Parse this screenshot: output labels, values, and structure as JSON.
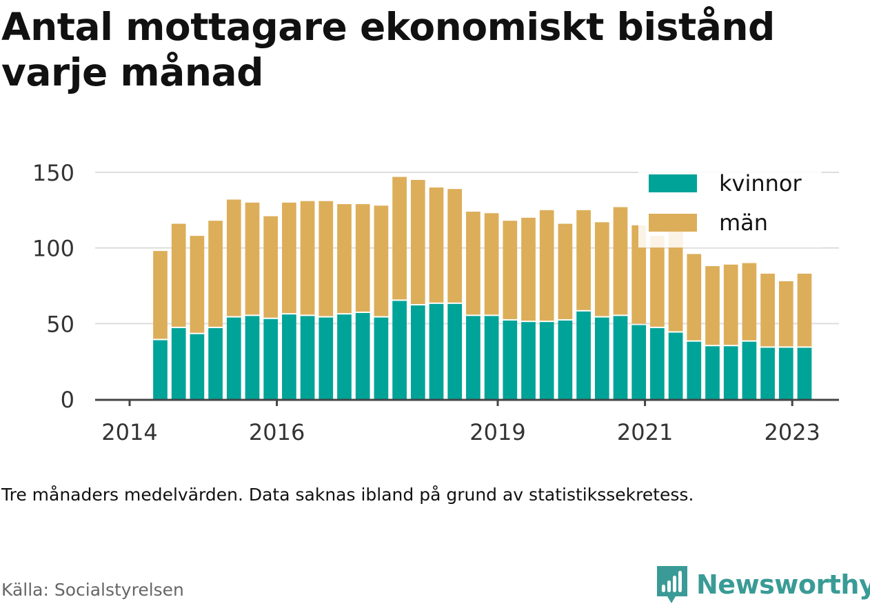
{
  "title": "Antal mottagare ekonomiskt bistånd varje månad",
  "note": "Tre månaders medelvärden. Data saknas ibland på grund av statistikssekretess.",
  "source": "Källa: Socialstyrelsen",
  "brand": "Newsworthy",
  "colors": {
    "kvinnor": "#00a398",
    "man": "#dcae5a",
    "grid": "#dddddd",
    "axis": "#444444",
    "brand": "#3a9b96"
  },
  "chart_data": {
    "type": "bar",
    "stacked": true,
    "x_start": "2014-06",
    "x_step_months": 3,
    "x_ticks": [
      "2014",
      "2016",
      "2019",
      "2021",
      "2023"
    ],
    "y_ticks": [
      "0",
      "50",
      "100",
      "150"
    ],
    "ylim": [
      0,
      150
    ],
    "grid": true,
    "legend_position": "top-right",
    "series": [
      {
        "name": "kvinnor",
        "values": [
          39,
          47,
          43,
          47,
          54,
          55,
          53,
          56,
          55,
          54,
          56,
          57,
          54,
          65,
          62,
          63,
          63,
          55,
          55,
          52,
          51,
          51,
          52,
          58,
          54,
          55,
          49,
          47,
          44,
          38,
          35,
          35,
          38,
          34,
          34,
          34
        ]
      },
      {
        "name": "män",
        "values": [
          59,
          69,
          65,
          71,
          78,
          75,
          68,
          74,
          76,
          77,
          73,
          72,
          74,
          82,
          83,
          77,
          76,
          69,
          68,
          66,
          69,
          74,
          64,
          67,
          63,
          72,
          66,
          61,
          67,
          58,
          53,
          54,
          52,
          49,
          44,
          49
        ]
      }
    ]
  }
}
